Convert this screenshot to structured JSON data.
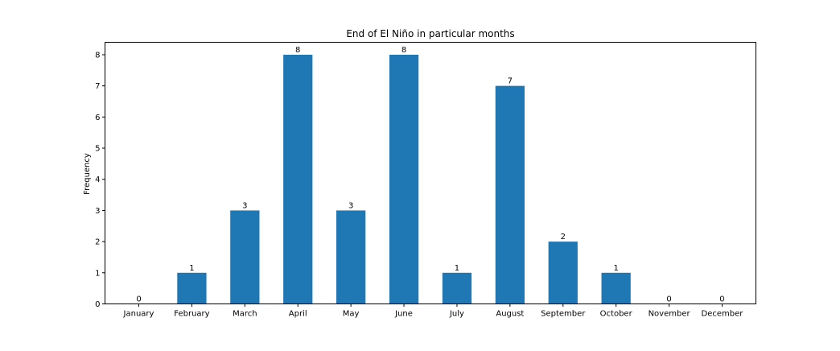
{
  "chart_data": {
    "type": "bar",
    "title": "End of El Niño in particular months",
    "xlabel": "",
    "ylabel": "Frequency",
    "categories": [
      "January",
      "February",
      "March",
      "April",
      "May",
      "June",
      "July",
      "August",
      "September",
      "October",
      "November",
      "December"
    ],
    "values": [
      0,
      1,
      3,
      8,
      3,
      8,
      1,
      7,
      2,
      1,
      0,
      0
    ],
    "ylim": [
      0,
      8.4
    ],
    "yticks": [
      0,
      1,
      2,
      3,
      4,
      5,
      6,
      7,
      8
    ],
    "bar_color": "#1f77b4",
    "grid": false,
    "data_labels": true
  }
}
